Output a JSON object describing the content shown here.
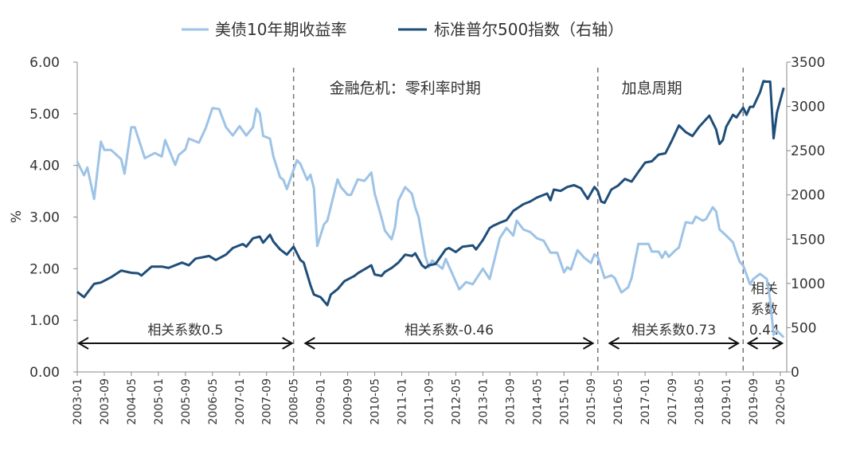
{
  "chart_data": {
    "type": "line",
    "title": "",
    "legend_position": "top",
    "ylabel_left": "%",
    "ylabel_right": "",
    "y_left": {
      "lim": [
        0,
        6
      ],
      "ticks": [
        "0.00",
        "1.00",
        "2.00",
        "3.00",
        "4.00",
        "5.00",
        "6.00"
      ]
    },
    "y_right": {
      "lim": [
        0,
        3500
      ],
      "ticks": [
        "0",
        "500",
        "1000",
        "1500",
        "2000",
        "2500",
        "3000",
        "3500"
      ]
    },
    "x_ticks": [
      "2003-01",
      "2003-09",
      "2004-05",
      "2005-01",
      "2005-09",
      "2006-05",
      "2007-01",
      "2007-09",
      "2008-05",
      "2009-01",
      "2009-09",
      "2010-05",
      "2011-01",
      "2011-09",
      "2012-05",
      "2013-01",
      "2013-09",
      "2014-05",
      "2015-01",
      "2015-09",
      "2016-05",
      "2017-01",
      "2017-09",
      "2018-05",
      "2019-01",
      "2019-09",
      "2020-05"
    ],
    "grid": false,
    "series": [
      {
        "name": "美债10年期收益率",
        "axis": "left",
        "color": "#9dc3e6",
        "points": [
          [
            "2003-01",
            4.07
          ],
          [
            "2003-03",
            3.81
          ],
          [
            "2003-04",
            3.96
          ],
          [
            "2003-06",
            3.35
          ],
          [
            "2003-08",
            4.46
          ],
          [
            "2003-09",
            4.3
          ],
          [
            "2003-11",
            4.3
          ],
          [
            "2004-02",
            4.12
          ],
          [
            "2004-03",
            3.84
          ],
          [
            "2004-05",
            4.74
          ],
          [
            "2004-06",
            4.74
          ],
          [
            "2004-09",
            4.14
          ],
          [
            "2004-12",
            4.24
          ],
          [
            "2005-02",
            4.17
          ],
          [
            "2005-03",
            4.49
          ],
          [
            "2005-06",
            4.01
          ],
          [
            "2005-07",
            4.2
          ],
          [
            "2005-09",
            4.31
          ],
          [
            "2005-10",
            4.52
          ],
          [
            "2006-01",
            4.44
          ],
          [
            "2006-03",
            4.72
          ],
          [
            "2006-05",
            5.11
          ],
          [
            "2006-07",
            5.09
          ],
          [
            "2006-09",
            4.74
          ],
          [
            "2006-11",
            4.58
          ],
          [
            "2007-01",
            4.76
          ],
          [
            "2007-03",
            4.58
          ],
          [
            "2007-05",
            4.74
          ],
          [
            "2007-06",
            5.1
          ],
          [
            "2007-07",
            5.01
          ],
          [
            "2007-08",
            4.57
          ],
          [
            "2007-10",
            4.52
          ],
          [
            "2007-11",
            4.18
          ],
          [
            "2008-01",
            3.77
          ],
          [
            "2008-02",
            3.72
          ],
          [
            "2008-03",
            3.54
          ],
          [
            "2008-06",
            4.1
          ],
          [
            "2008-07",
            4.03
          ],
          [
            "2008-09",
            3.72
          ],
          [
            "2008-10",
            3.82
          ],
          [
            "2008-11",
            3.56
          ],
          [
            "2008-12",
            2.44
          ],
          [
            "2009-02",
            2.86
          ],
          [
            "2009-03",
            2.93
          ],
          [
            "2009-06",
            3.73
          ],
          [
            "2009-07",
            3.58
          ],
          [
            "2009-09",
            3.43
          ],
          [
            "2009-10",
            3.43
          ],
          [
            "2009-12",
            3.73
          ],
          [
            "2010-02",
            3.7
          ],
          [
            "2010-04",
            3.86
          ],
          [
            "2010-05",
            3.45
          ],
          [
            "2010-07",
            2.99
          ],
          [
            "2010-08",
            2.74
          ],
          [
            "2010-10",
            2.57
          ],
          [
            "2010-11",
            2.8
          ],
          [
            "2010-12",
            3.32
          ],
          [
            "2011-02",
            3.58
          ],
          [
            "2011-04",
            3.45
          ],
          [
            "2011-05",
            3.18
          ],
          [
            "2011-06",
            3.0
          ],
          [
            "2011-08",
            2.24
          ],
          [
            "2011-09",
            2.03
          ],
          [
            "2011-10",
            2.16
          ],
          [
            "2012-01",
            2.0
          ],
          [
            "2012-02",
            2.19
          ],
          [
            "2012-06",
            1.6
          ],
          [
            "2012-08",
            1.74
          ],
          [
            "2012-10",
            1.7
          ],
          [
            "2013-01",
            2.0
          ],
          [
            "2013-03",
            1.8
          ],
          [
            "2013-06",
            2.59
          ],
          [
            "2013-08",
            2.79
          ],
          [
            "2013-10",
            2.64
          ],
          [
            "2013-11",
            2.93
          ],
          [
            "2014-01",
            2.76
          ],
          [
            "2014-03",
            2.71
          ],
          [
            "2014-05",
            2.59
          ],
          [
            "2014-07",
            2.54
          ],
          [
            "2014-09",
            2.31
          ],
          [
            "2014-11",
            2.31
          ],
          [
            "2015-01",
            1.93
          ],
          [
            "2015-02",
            2.03
          ],
          [
            "2015-03",
            1.98
          ],
          [
            "2015-05",
            2.36
          ],
          [
            "2015-07",
            2.21
          ],
          [
            "2015-09",
            2.11
          ],
          [
            "2015-10",
            2.28
          ],
          [
            "2015-11",
            2.23
          ],
          [
            "2016-01",
            1.82
          ],
          [
            "2016-03",
            1.87
          ],
          [
            "2016-04",
            1.82
          ],
          [
            "2016-06",
            1.54
          ],
          [
            "2016-08",
            1.64
          ],
          [
            "2016-09",
            1.82
          ],
          [
            "2016-11",
            2.48
          ],
          [
            "2016-12",
            2.48
          ],
          [
            "2017-02",
            2.48
          ],
          [
            "2017-03",
            2.33
          ],
          [
            "2017-05",
            2.33
          ],
          [
            "2017-06",
            2.21
          ],
          [
            "2017-07",
            2.33
          ],
          [
            "2017-08",
            2.23
          ],
          [
            "2017-10",
            2.36
          ],
          [
            "2017-11",
            2.41
          ],
          [
            "2018-01",
            2.9
          ],
          [
            "2018-03",
            2.88
          ],
          [
            "2018-04",
            3.01
          ],
          [
            "2018-06",
            2.93
          ],
          [
            "2018-07",
            2.96
          ],
          [
            "2018-09",
            3.19
          ],
          [
            "2018-10",
            3.11
          ],
          [
            "2018-11",
            2.76
          ],
          [
            "2019-01",
            2.64
          ],
          [
            "2019-03",
            2.51
          ],
          [
            "2019-04",
            2.31
          ],
          [
            "2019-05",
            2.13
          ],
          [
            "2019-06",
            2.06
          ],
          [
            "2019-08",
            1.7
          ],
          [
            "2019-09",
            1.8
          ],
          [
            "2019-11",
            1.9
          ],
          [
            "2020-01",
            1.8
          ],
          [
            "2020-02",
            1.39
          ],
          [
            "2020-03",
            0.72
          ],
          [
            "2020-04",
            0.8
          ],
          [
            "2020-06",
            0.67
          ]
        ]
      },
      {
        "name": "标准普尔500指数（右轴）",
        "axis": "right",
        "color": "#1f4e79",
        "points": [
          [
            "2003-01",
            905
          ],
          [
            "2003-03",
            845
          ],
          [
            "2003-06",
            995
          ],
          [
            "2003-08",
            1010
          ],
          [
            "2003-11",
            1070
          ],
          [
            "2004-02",
            1145
          ],
          [
            "2004-05",
            1120
          ],
          [
            "2004-07",
            1115
          ],
          [
            "2004-08",
            1090
          ],
          [
            "2004-11",
            1190
          ],
          [
            "2005-02",
            1190
          ],
          [
            "2005-04",
            1175
          ],
          [
            "2005-08",
            1235
          ],
          [
            "2005-10",
            1205
          ],
          [
            "2005-12",
            1280
          ],
          [
            "2006-04",
            1310
          ],
          [
            "2006-06",
            1265
          ],
          [
            "2006-09",
            1325
          ],
          [
            "2006-11",
            1400
          ],
          [
            "2007-02",
            1445
          ],
          [
            "2007-03",
            1415
          ],
          [
            "2007-05",
            1510
          ],
          [
            "2007-07",
            1530
          ],
          [
            "2007-08",
            1460
          ],
          [
            "2007-10",
            1550
          ],
          [
            "2007-11",
            1475
          ],
          [
            "2008-01",
            1385
          ],
          [
            "2008-03",
            1325
          ],
          [
            "2008-05",
            1415
          ],
          [
            "2008-07",
            1265
          ],
          [
            "2008-08",
            1235
          ],
          [
            "2008-10",
            980
          ],
          [
            "2008-11",
            875
          ],
          [
            "2009-01",
            845
          ],
          [
            "2009-03",
            755
          ],
          [
            "2009-04",
            875
          ],
          [
            "2009-06",
            935
          ],
          [
            "2009-08",
            1025
          ],
          [
            "2009-11",
            1085
          ],
          [
            "2009-12",
            1115
          ],
          [
            "2010-04",
            1205
          ],
          [
            "2010-05",
            1100
          ],
          [
            "2010-07",
            1085
          ],
          [
            "2010-08",
            1130
          ],
          [
            "2010-10",
            1175
          ],
          [
            "2010-12",
            1235
          ],
          [
            "2011-02",
            1325
          ],
          [
            "2011-04",
            1310
          ],
          [
            "2011-05",
            1340
          ],
          [
            "2011-07",
            1205
          ],
          [
            "2011-08",
            1175
          ],
          [
            "2011-09",
            1205
          ],
          [
            "2011-11",
            1220
          ],
          [
            "2012-02",
            1385
          ],
          [
            "2012-03",
            1400
          ],
          [
            "2012-05",
            1355
          ],
          [
            "2012-07",
            1415
          ],
          [
            "2012-10",
            1430
          ],
          [
            "2012-11",
            1385
          ],
          [
            "2013-01",
            1490
          ],
          [
            "2013-03",
            1625
          ],
          [
            "2013-04",
            1650
          ],
          [
            "2013-06",
            1685
          ],
          [
            "2013-08",
            1715
          ],
          [
            "2013-10",
            1820
          ],
          [
            "2014-01",
            1895
          ],
          [
            "2014-03",
            1925
          ],
          [
            "2014-05",
            1970
          ],
          [
            "2014-08",
            2015
          ],
          [
            "2014-09",
            1940
          ],
          [
            "2014-10",
            2060
          ],
          [
            "2014-12",
            2045
          ],
          [
            "2015-02",
            2090
          ],
          [
            "2015-04",
            2110
          ],
          [
            "2015-06",
            2075
          ],
          [
            "2015-08",
            1955
          ],
          [
            "2015-10",
            2090
          ],
          [
            "2015-11",
            2045
          ],
          [
            "2015-12",
            1925
          ],
          [
            "2016-01",
            1910
          ],
          [
            "2016-03",
            2060
          ],
          [
            "2016-05",
            2105
          ],
          [
            "2016-07",
            2180
          ],
          [
            "2016-09",
            2150
          ],
          [
            "2016-11",
            2260
          ],
          [
            "2017-01",
            2365
          ],
          [
            "2017-03",
            2380
          ],
          [
            "2017-05",
            2455
          ],
          [
            "2017-07",
            2470
          ],
          [
            "2017-09",
            2620
          ],
          [
            "2017-11",
            2785
          ],
          [
            "2018-01",
            2710
          ],
          [
            "2018-03",
            2665
          ],
          [
            "2018-05",
            2770
          ],
          [
            "2018-08",
            2895
          ],
          [
            "2018-10",
            2740
          ],
          [
            "2018-11",
            2575
          ],
          [
            "2018-12",
            2620
          ],
          [
            "2019-01",
            2770
          ],
          [
            "2019-03",
            2905
          ],
          [
            "2019-04",
            2875
          ],
          [
            "2019-06",
            2985
          ],
          [
            "2019-07",
            2905
          ],
          [
            "2019-08",
            2995
          ],
          [
            "2019-09",
            2995
          ],
          [
            "2019-11",
            3160
          ],
          [
            "2019-12",
            3285
          ],
          [
            "2020-01",
            3280
          ],
          [
            "2020-02",
            3280
          ],
          [
            "2020-03",
            2640
          ],
          [
            "2020-04",
            2930
          ],
          [
            "2020-06",
            3210
          ]
        ]
      }
    ],
    "dividers": [
      "2008-05",
      "2015-11",
      "2019-06"
    ],
    "period_labels": [
      {
        "text": "金融危机：零利率时期",
        "anchor": "2011-02"
      },
      {
        "text": "加息周期",
        "anchor": "2017-03"
      }
    ],
    "correlations": [
      {
        "lines": [
          "相关系数0.5"
        ],
        "from": "2003-01",
        "to": "2008-05"
      },
      {
        "lines": [
          "相关系数-0.46"
        ],
        "from": "2008-08",
        "to": "2015-10"
      },
      {
        "lines": [
          "相关系数0.73"
        ],
        "from": "2016-02",
        "to": "2019-05"
      },
      {
        "lines": [
          "相关",
          "系数",
          "0.44"
        ],
        "from": "2019-07",
        "to": "2020-06"
      }
    ]
  }
}
